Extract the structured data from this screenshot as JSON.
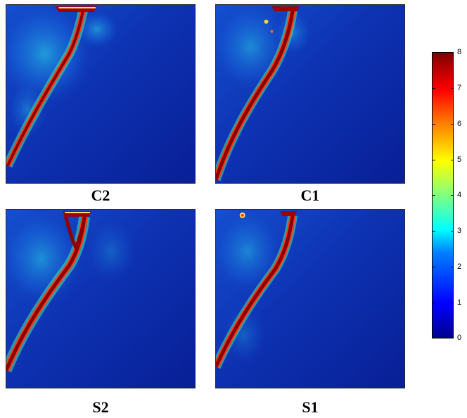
{
  "panels": [
    {
      "id": "c2",
      "label": "C2"
    },
    {
      "id": "c1",
      "label": "C1"
    },
    {
      "id": "s2",
      "label": "S2"
    },
    {
      "id": "s1",
      "label": "S1"
    }
  ],
  "colorbar": {
    "min": 0,
    "max": 8,
    "ticks": [
      "8",
      "7",
      "6",
      "5",
      "4",
      "3",
      "2",
      "1",
      "0"
    ],
    "colormap": "jet",
    "colors": [
      "#00008f",
      "#0000ff",
      "#00ffff",
      "#ffff00",
      "#ff0000",
      "#800000"
    ]
  }
}
